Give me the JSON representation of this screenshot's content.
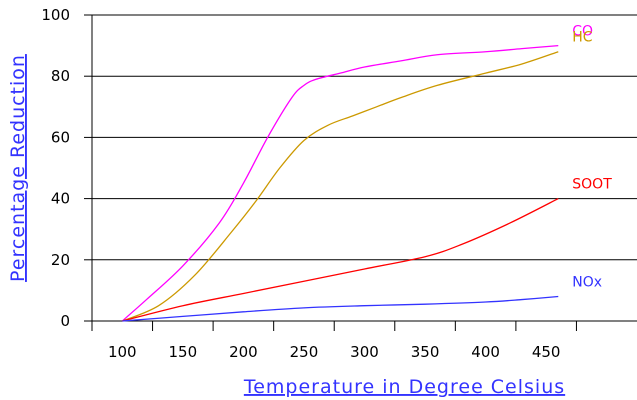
{
  "chart_data": {
    "type": "line",
    "xlabel": "Temperature in Degree Celsius",
    "ylabel": "Percentage Reduction",
    "x_ticks": [
      100,
      150,
      200,
      250,
      300,
      350,
      400,
      450
    ],
    "x_tick_labels": [
      "100",
      "150",
      "200",
      "250",
      "300",
      "350",
      "400",
      "450"
    ],
    "y_ticks": [
      0,
      20,
      40,
      60,
      80,
      100
    ],
    "y_tick_labels": [
      "0",
      "20",
      "40",
      "60",
      "80",
      "100"
    ],
    "xlim": [
      75,
      525
    ],
    "ylim": [
      0,
      100
    ],
    "grid": "horizontal",
    "series": [
      {
        "name": "CO",
        "color": "#ff00ff",
        "x": [
          100,
          120,
          150,
          180,
          200,
          220,
          240,
          250,
          260,
          280,
          300,
          330,
          360,
          400,
          430,
          460
        ],
        "y": [
          0,
          7,
          18,
          32,
          45,
          60,
          73,
          77,
          79,
          81,
          83,
          85,
          87,
          88,
          89,
          90
        ]
      },
      {
        "name": "HC",
        "color": "#cc9900",
        "x": [
          100,
          130,
          160,
          190,
          210,
          230,
          250,
          270,
          290,
          310,
          330,
          360,
          400,
          430,
          460
        ],
        "y": [
          0,
          5,
          15,
          29,
          39,
          50,
          59,
          64,
          67,
          70,
          73,
          77,
          81,
          84,
          88
        ]
      },
      {
        "name": "SOOT",
        "color": "#ff0000",
        "x": [
          100,
          150,
          200,
          250,
          300,
          350,
          380,
          420,
          460
        ],
        "y": [
          0,
          5,
          9,
          13,
          17,
          21,
          25,
          32,
          40
        ]
      },
      {
        "name": "NOx",
        "color": "#3333ff",
        "x": [
          100,
          150,
          200,
          250,
          300,
          350,
          400,
          430,
          460
        ],
        "y": [
          0,
          1.5,
          3,
          4.3,
          5,
          5.5,
          6.2,
          7,
          8
        ]
      }
    ]
  }
}
